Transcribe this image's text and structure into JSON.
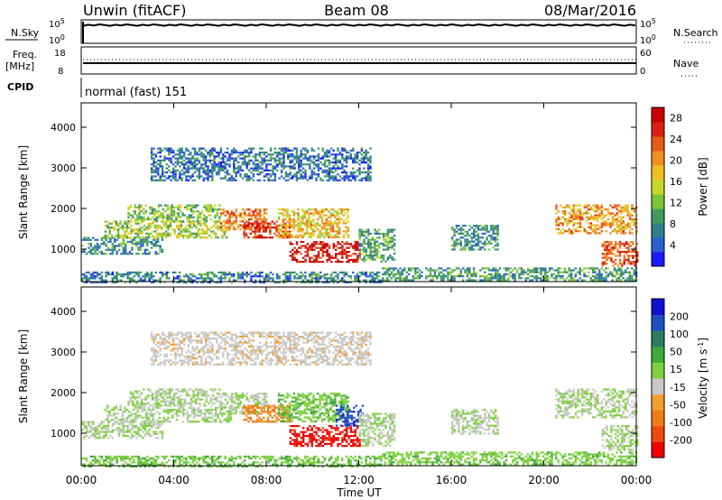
{
  "header": {
    "title": "Unwin (fitACF)",
    "beam": "Beam 08",
    "date": "08/Mar/2016"
  },
  "strips": {
    "nsky_label": "N.Sky",
    "nsky_ticks": [
      "10^5",
      "10^0"
    ],
    "nsearch_ticks": [
      "10^5",
      "10^0"
    ],
    "nsearch_label": "N.Search",
    "freq_label_1": "Freq.",
    "freq_label_2": "[MHz]",
    "freq_ticks": [
      "18",
      "8"
    ],
    "nave_ticks": [
      "60",
      "0"
    ],
    "nave_label": "Nave",
    "cpid_label": "CPID",
    "cpid_value": "normal (fast) 151"
  },
  "chart_data": [
    {
      "type": "heatmap",
      "panel": "power",
      "title": "",
      "xlabel": "Time UT",
      "ylabel": "Slant Range [km]",
      "x_ticks": [
        "00:00",
        "04:00",
        "08:00",
        "12:00",
        "16:00",
        "20:00",
        "00:00"
      ],
      "y_ticks": [
        "1000",
        "2000",
        "3000",
        "4000"
      ],
      "ylim": [
        200,
        4600
      ],
      "colorbar": {
        "label": "Power [dB]",
        "ticks": [
          "4",
          "8",
          "12",
          "16",
          "20",
          "24",
          "28"
        ],
        "range": [
          0,
          30
        ],
        "colors": [
          "#1a1aff",
          "#2b5fd0",
          "#2e7f8c",
          "#3f9a5a",
          "#7cc43a",
          "#c8d82a",
          "#f0c020",
          "#f09020",
          "#e85a18",
          "#d82010",
          "#c80000"
        ]
      },
      "regions": [
        {
          "t0": 0.0,
          "t1": 3.5,
          "r0": 900,
          "r1": 1300,
          "level": 8
        },
        {
          "t0": 1.0,
          "t1": 6.5,
          "r0": 1300,
          "r1": 1700,
          "level": 14
        },
        {
          "t0": 2.0,
          "t1": 6.0,
          "r0": 1700,
          "r1": 2100,
          "level": 12
        },
        {
          "t0": 6.0,
          "t1": 8.0,
          "r0": 1500,
          "r1": 2000,
          "level": 22
        },
        {
          "t0": 7.0,
          "t1": 9.0,
          "r0": 1300,
          "r1": 1700,
          "level": 26
        },
        {
          "t0": 9.0,
          "t1": 12.0,
          "r0": 700,
          "r1": 1200,
          "level": 28
        },
        {
          "t0": 8.5,
          "t1": 11.5,
          "r0": 1300,
          "r1": 2000,
          "level": 18
        },
        {
          "t0": 3.0,
          "t1": 12.5,
          "r0": 2700,
          "r1": 3500,
          "level": 6
        },
        {
          "t0": 12.0,
          "t1": 13.5,
          "r0": 700,
          "r1": 1500,
          "level": 10
        },
        {
          "t0": 13.0,
          "t1": 24.0,
          "r0": 250,
          "r1": 550,
          "level": 9
        },
        {
          "t0": 16.0,
          "t1": 18.0,
          "r0": 1000,
          "r1": 1600,
          "level": 8
        },
        {
          "t0": 20.5,
          "t1": 24.0,
          "r0": 1400,
          "r1": 2100,
          "level": 20
        },
        {
          "t0": 22.5,
          "t1": 24.0,
          "r0": 600,
          "r1": 1200,
          "level": 24
        },
        {
          "t0": 0.0,
          "t1": 13.0,
          "r0": 200,
          "r1": 450,
          "level": 7
        }
      ]
    },
    {
      "type": "heatmap",
      "panel": "velocity",
      "title": "",
      "xlabel": "Time UT",
      "ylabel": "Slant Range [km]",
      "x_ticks": [
        "00:00",
        "04:00",
        "08:00",
        "12:00",
        "16:00",
        "20:00",
        "00:00"
      ],
      "y_ticks": [
        "1000",
        "2000",
        "3000",
        "4000"
      ],
      "ylim": [
        200,
        4600
      ],
      "colorbar": {
        "label": "Velocity [m s^-1]",
        "ticks": [
          "200",
          "100",
          "50",
          "15",
          "-15",
          "-50",
          "-100",
          "-200"
        ],
        "range": [
          -250,
          250
        ],
        "colors": [
          "#ee0000",
          "#f04a10",
          "#f27a18",
          "#f2a030",
          "#c8c8c8",
          "#7fd040",
          "#3fa83f",
          "#2f7a60",
          "#1f4fc0",
          "#1010d0"
        ]
      },
      "regions": [
        {
          "t0": 0.0,
          "t1": 3.5,
          "r0": 900,
          "r1": 1300,
          "level": 0
        },
        {
          "t0": 1.0,
          "t1": 6.5,
          "r0": 1300,
          "r1": 1700,
          "level": 0
        },
        {
          "t0": 2.0,
          "t1": 6.0,
          "r0": 1700,
          "r1": 2100,
          "level": 0
        },
        {
          "t0": 6.0,
          "t1": 8.0,
          "r0": 1500,
          "r1": 2000,
          "level": 0
        },
        {
          "t0": 7.0,
          "t1": 9.0,
          "r0": 1300,
          "r1": 1700,
          "level": -120
        },
        {
          "t0": 9.0,
          "t1": 12.0,
          "r0": 700,
          "r1": 1200,
          "level": -220
        },
        {
          "t0": 8.5,
          "t1": 11.5,
          "r0": 1300,
          "r1": 2000,
          "level": 40
        },
        {
          "t0": 11.0,
          "t1": 12.2,
          "r0": 1200,
          "r1": 1700,
          "level": 180
        },
        {
          "t0": 3.0,
          "t1": 12.5,
          "r0": 2700,
          "r1": 3500,
          "level": -30
        },
        {
          "t0": 12.0,
          "t1": 13.5,
          "r0": 700,
          "r1": 1500,
          "level": 0
        },
        {
          "t0": 13.0,
          "t1": 24.0,
          "r0": 250,
          "r1": 550,
          "level": 30
        },
        {
          "t0": 16.0,
          "t1": 18.0,
          "r0": 1000,
          "r1": 1600,
          "level": 0
        },
        {
          "t0": 20.5,
          "t1": 24.0,
          "r0": 1400,
          "r1": 2100,
          "level": 0
        },
        {
          "t0": 22.5,
          "t1": 24.0,
          "r0": 600,
          "r1": 1200,
          "level": 0
        },
        {
          "t0": 0.0,
          "t1": 13.0,
          "r0": 200,
          "r1": 450,
          "level": 40
        }
      ]
    }
  ]
}
